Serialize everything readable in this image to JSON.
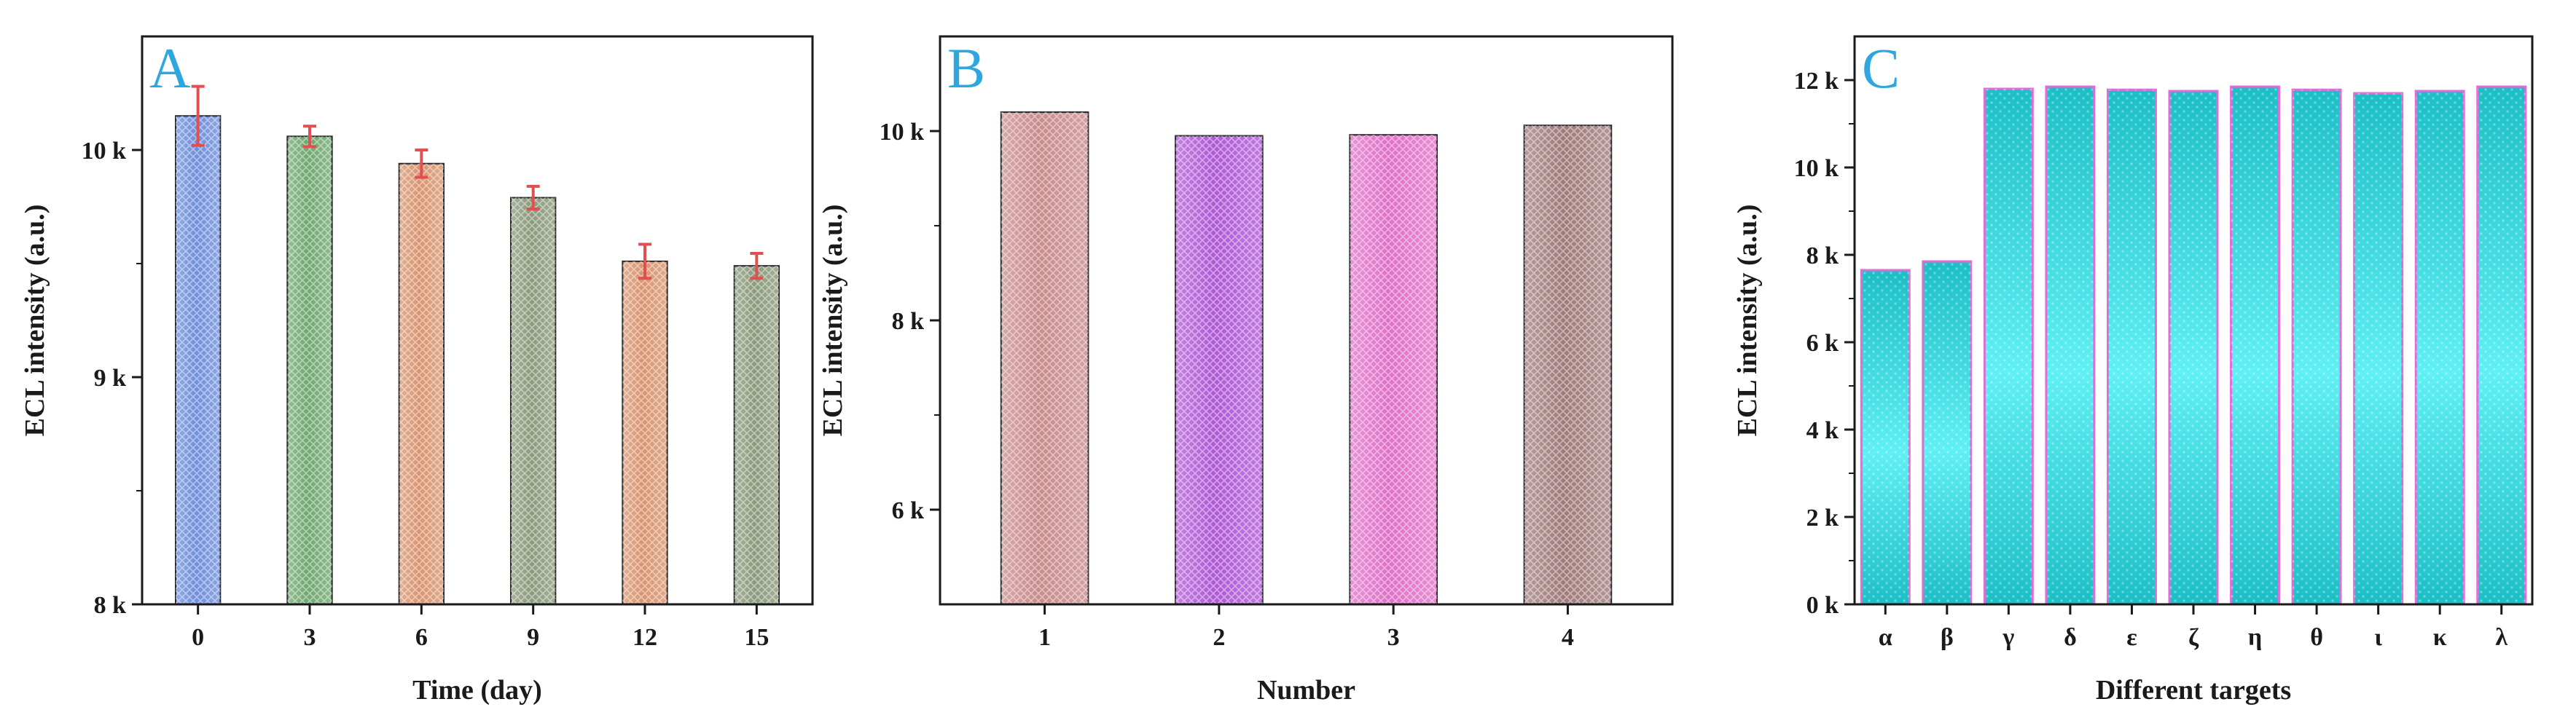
{
  "chart_data": [
    {
      "type": "bar",
      "panel_label": "A",
      "xlabel": "Time (day)",
      "ylabel": "ECL intensity (a.u.)",
      "categories": [
        "0",
        "3",
        "6",
        "9",
        "12",
        "15"
      ],
      "values": [
        10150,
        10060,
        9940,
        9790,
        9510,
        9490
      ],
      "errors": [
        130,
        45,
        60,
        50,
        75,
        55
      ],
      "ylim": [
        8000,
        10500
      ],
      "yticks": [
        8000,
        9000,
        10000
      ],
      "ytick_labels": [
        "8 k",
        "9 k",
        "10 k"
      ],
      "bar_colors": [
        "#6f8fdc",
        "#6fa86f",
        "#d9946e",
        "#8a9a7a",
        "#d9946e",
        "#8a9a7a"
      ],
      "error_bar_color": "#e05050",
      "grid": false
    },
    {
      "type": "bar",
      "panel_label": "B",
      "xlabel": "Number",
      "ylabel": "ECL intensity (a.u.)",
      "categories": [
        "1",
        "2",
        "3",
        "4"
      ],
      "values": [
        10200,
        9950,
        9960,
        10060
      ],
      "ylim": [
        5000,
        11000
      ],
      "yticks": [
        6000,
        8000,
        10000
      ],
      "ytick_labels": [
        "6 k",
        "8 k",
        "10 k"
      ],
      "bar_colors": [
        "#c98a8a",
        "#b058d6",
        "#e070c8",
        "#a07a7a"
      ],
      "grid": false
    },
    {
      "type": "bar",
      "panel_label": "C",
      "xlabel": "Different targets",
      "ylabel": "ECL intensity (a.u.)",
      "categories": [
        "α",
        "β",
        "γ",
        "δ",
        "ε",
        "ζ",
        "η",
        "θ",
        "ι",
        "κ",
        "λ"
      ],
      "values": [
        7650,
        7850,
        11800,
        11850,
        11780,
        11750,
        11850,
        11780,
        11700,
        11750,
        11850
      ],
      "ylim": [
        0,
        13000
      ],
      "yticks": [
        0,
        2000,
        4000,
        6000,
        8000,
        10000,
        12000
      ],
      "ytick_labels": [
        "0 k",
        "2 k",
        "4 k",
        "6 k",
        "8 k",
        "10 k",
        "12 k"
      ],
      "bar_fill_light": "#5ff0f5",
      "bar_fill_dark": "#1cbfc6",
      "bar_edge_color": "#e26bd8",
      "grid": false
    }
  ]
}
